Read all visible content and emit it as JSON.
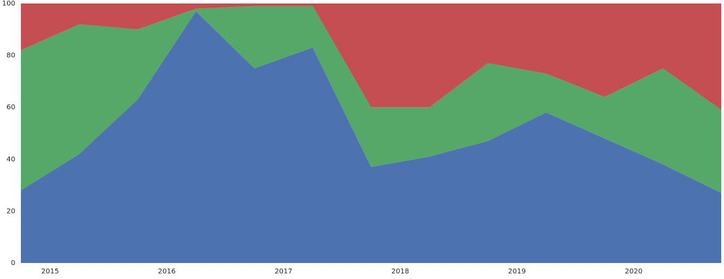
{
  "chart_data": {
    "type": "stacked_area",
    "x": [
      2014.75,
      2015.25,
      2015.75,
      2016.25,
      2016.75,
      2017.25,
      2017.75,
      2018.25,
      2018.75,
      2019.25,
      2019.75,
      2020.25,
      2020.75
    ],
    "series": [
      {
        "color": "#4c72b0",
        "values": [
          28,
          42,
          63,
          97,
          75,
          83,
          37,
          41,
          47,
          58,
          48,
          38,
          27
        ]
      },
      {
        "color": "#55a868",
        "values": [
          54,
          50,
          27,
          1,
          24,
          16,
          23,
          19,
          30,
          15,
          16,
          37,
          32
        ]
      },
      {
        "color": "#c44e52",
        "values": [
          18,
          8,
          10,
          2,
          1,
          1,
          40,
          40,
          23,
          27,
          36,
          25,
          41
        ]
      }
    ],
    "xlim": [
      2014.75,
      2020.75
    ],
    "xticks": [
      2015,
      2016,
      2017,
      2018,
      2019,
      2020
    ],
    "ylim": [
      0,
      100
    ],
    "yticks": [
      0,
      20,
      40,
      60,
      80,
      100
    ],
    "grid": true
  }
}
